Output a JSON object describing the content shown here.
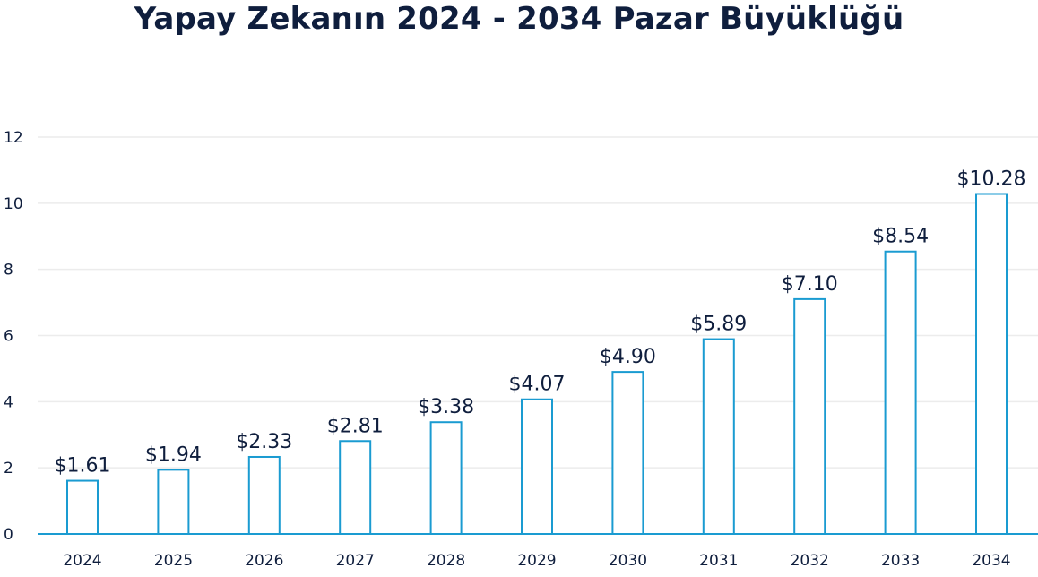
{
  "chart_data": {
    "type": "bar",
    "title": "Yapay Zekanın 2024 - 2034 Pazar Büyüklüğü",
    "xlabel": "",
    "ylabel": "",
    "categories": [
      "2024",
      "2025",
      "2026",
      "2027",
      "2028",
      "2029",
      "2030",
      "2031",
      "2032",
      "2033",
      "2034"
    ],
    "values": [
      1.61,
      1.94,
      2.33,
      2.81,
      3.38,
      4.07,
      4.9,
      5.89,
      7.1,
      8.54,
      10.28
    ],
    "data_labels": [
      "$1.61",
      "$1.94",
      "$2.33",
      "$2.81",
      "$3.38",
      "$4.07",
      "$4.90",
      "$5.89",
      "$7.10",
      "$8.54",
      "$10.28"
    ],
    "ylim": [
      0,
      12
    ],
    "yticks": [
      "0",
      "2",
      "4",
      "6",
      "8",
      "10",
      "12"
    ],
    "grid": true,
    "legend": "none",
    "colors": {
      "bar_outline": "#1a9bd1",
      "bar_fill": "#ffffff",
      "text": "#0f1e3d",
      "grid": "#ececec",
      "axis": "#1a9bd1"
    }
  }
}
